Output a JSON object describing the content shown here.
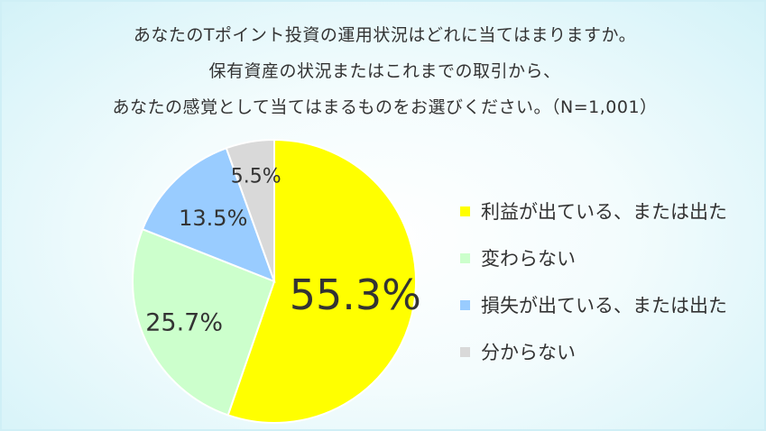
{
  "title": {
    "line1": "あなたのTポイント投資の運用状況はどれに当てはまりますか。",
    "line2": "保有資産の状況またはこれまでの取引から、",
    "line3": "あなたの感覚として当てはまるものをお選びください。（N=1,001）"
  },
  "chart_data": {
    "type": "pie",
    "categories": [
      "利益が出ている、または出た",
      "変わらない",
      "損失が出ている、または出た",
      "分からない"
    ],
    "values": [
      55.3,
      25.7,
      13.5,
      5.5
    ],
    "value_labels": [
      "55.3%",
      "25.7%",
      "13.5%",
      "5.5%"
    ],
    "colors": [
      "#ffff00",
      "#ccffcc",
      "#99ccff",
      "#d9d9d9"
    ],
    "start": "12 o'clock, clockwise",
    "legend_position": "right"
  }
}
